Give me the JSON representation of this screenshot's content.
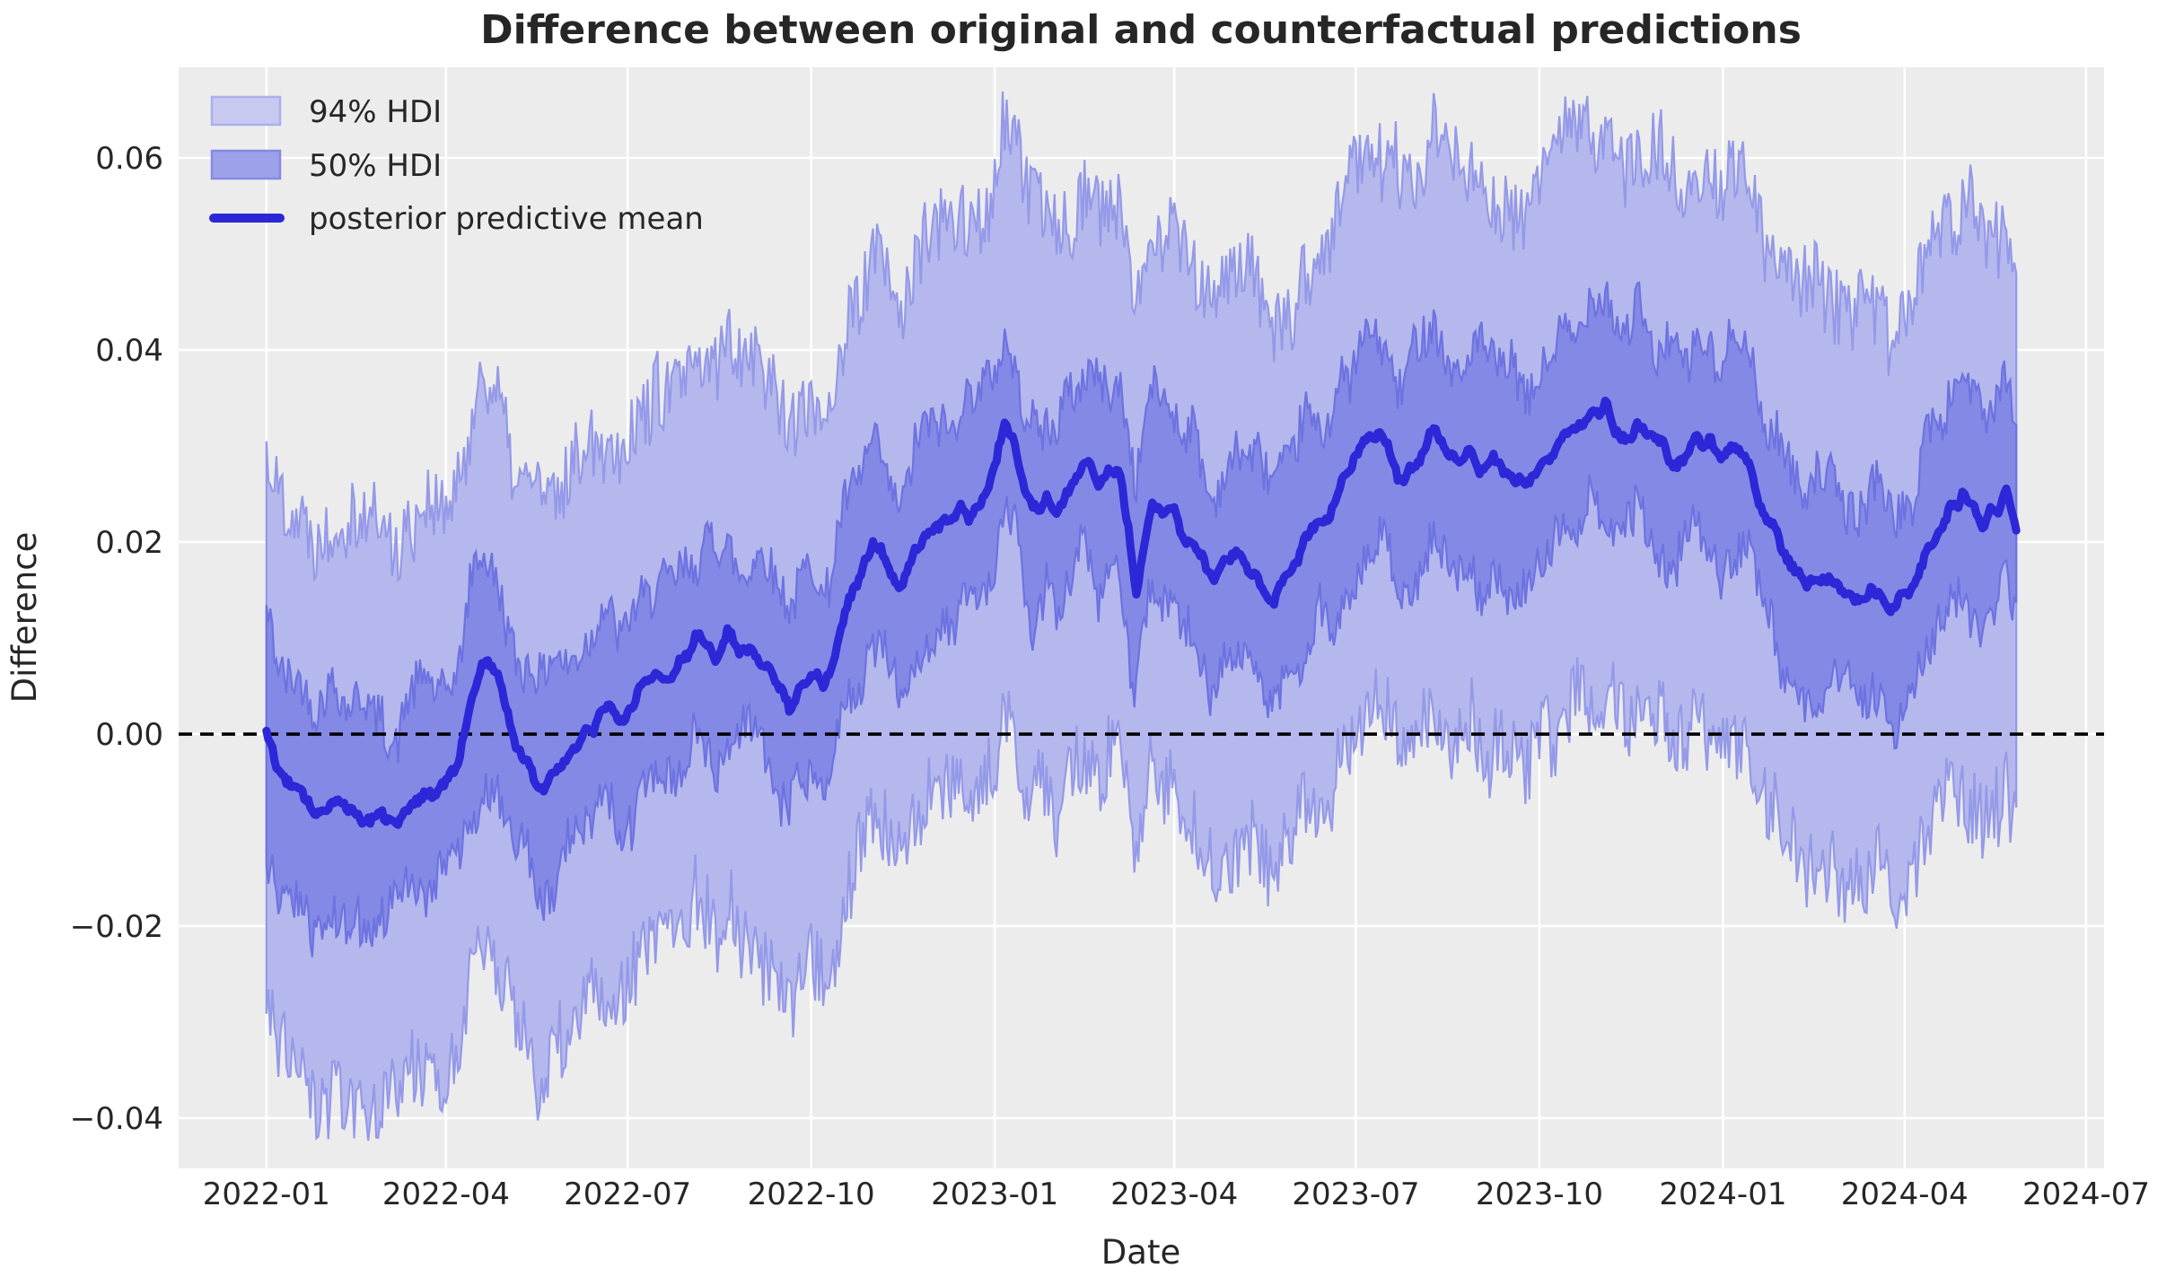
{
  "chart_data": {
    "type": "line",
    "title": "Difference between original and counterfactual predictions",
    "xlabel": "Date",
    "ylabel": "Difference",
    "legend_position": "upper left",
    "grid": true,
    "background": "plot area light gray with white gridlines",
    "x_start_date": "2022-01-01",
    "x_ticks": [
      {
        "label": "2022-01",
        "day": 0
      },
      {
        "label": "2022-04",
        "day": 90
      },
      {
        "label": "2022-07",
        "day": 181
      },
      {
        "label": "2022-10",
        "day": 273
      },
      {
        "label": "2023-01",
        "day": 365
      },
      {
        "label": "2023-04",
        "day": 455
      },
      {
        "label": "2023-07",
        "day": 546
      },
      {
        "label": "2023-10",
        "day": 638
      },
      {
        "label": "2024-01",
        "day": 730
      },
      {
        "label": "2024-04",
        "day": 821
      },
      {
        "label": "2024-07",
        "day": 912
      }
    ],
    "y_ticks": [
      {
        "label": "0.06",
        "value": 0.06
      },
      {
        "label": "0.04",
        "value": 0.04
      },
      {
        "label": "0.02",
        "value": 0.02
      },
      {
        "label": "0.00",
        "value": 0.0
      },
      {
        "label": "−0.02",
        "value": -0.02
      },
      {
        "label": "−0.04",
        "value": -0.04
      }
    ],
    "x_domain_days": [
      -44,
      921
    ],
    "y_domain": [
      -0.04523,
      0.06944
    ],
    "data_day_span": [
      0,
      877
    ],
    "zero_reference_line": 0.0,
    "legend_items": [
      {
        "label": "94% HDI",
        "kind": "band"
      },
      {
        "label": "50% HDI",
        "kind": "band"
      },
      {
        "label": "posterior predictive mean",
        "kind": "line"
      }
    ],
    "mean_anchors": [
      [
        0,
        0.0005
      ],
      [
        6,
        -0.004
      ],
      [
        14,
        -0.006
      ],
      [
        22,
        -0.0072
      ],
      [
        30,
        -0.008
      ],
      [
        36,
        -0.0066
      ],
      [
        44,
        -0.0085
      ],
      [
        52,
        -0.0093
      ],
      [
        58,
        -0.008
      ],
      [
        66,
        -0.0086
      ],
      [
        74,
        -0.007
      ],
      [
        82,
        -0.006
      ],
      [
        90,
        -0.0052
      ],
      [
        96,
        -0.003
      ],
      [
        102,
        0.0022
      ],
      [
        107,
        0.0062
      ],
      [
        111,
        0.008
      ],
      [
        116,
        0.006
      ],
      [
        121,
        0.0028
      ],
      [
        127,
        -0.0022
      ],
      [
        133,
        -0.0046
      ],
      [
        139,
        -0.0051
      ],
      [
        145,
        -0.0039
      ],
      [
        151,
        -0.0022
      ],
      [
        158,
        -0.0008
      ],
      [
        165,
        0.0012
      ],
      [
        172,
        0.0028
      ],
      [
        177,
        0.0014
      ],
      [
        184,
        0.004
      ],
      [
        190,
        0.0052
      ],
      [
        196,
        0.0062
      ],
      [
        202,
        0.0058
      ],
      [
        209,
        0.0078
      ],
      [
        215,
        0.01
      ],
      [
        220,
        0.0104
      ],
      [
        225,
        0.0078
      ],
      [
        231,
        0.01
      ],
      [
        237,
        0.0088
      ],
      [
        243,
        0.009
      ],
      [
        249,
        0.0076
      ],
      [
        254,
        0.006
      ],
      [
        258,
        0.0044
      ],
      [
        262,
        0.0024
      ],
      [
        268,
        0.0049
      ],
      [
        274,
        0.0061
      ],
      [
        279,
        0.0052
      ],
      [
        283,
        0.0078
      ],
      [
        288,
        0.0108
      ],
      [
        294,
        0.0152
      ],
      [
        299,
        0.0178
      ],
      [
        304,
        0.02
      ],
      [
        308,
        0.0185
      ],
      [
        313,
        0.016
      ],
      [
        317,
        0.0152
      ],
      [
        322,
        0.0172
      ],
      [
        327,
        0.0192
      ],
      [
        332,
        0.0212
      ],
      [
        340,
        0.0224
      ],
      [
        346,
        0.0234
      ],
      [
        352,
        0.0228
      ],
      [
        357,
        0.0238
      ],
      [
        362,
        0.0268
      ],
      [
        366,
        0.0288
      ],
      [
        370,
        0.032
      ],
      [
        374,
        0.031
      ],
      [
        379,
        0.0268
      ],
      [
        383,
        0.0242
      ],
      [
        387,
        0.0228
      ],
      [
        391,
        0.024
      ],
      [
        395,
        0.022
      ],
      [
        400,
        0.0244
      ],
      [
        406,
        0.0266
      ],
      [
        412,
        0.0286
      ],
      [
        417,
        0.0264
      ],
      [
        423,
        0.0272
      ],
      [
        428,
        0.0262
      ],
      [
        433,
        0.0196
      ],
      [
        436,
        0.0152
      ],
      [
        440,
        0.0205
      ],
      [
        444,
        0.0236
      ],
      [
        448,
        0.0222
      ],
      [
        453,
        0.0238
      ],
      [
        458,
        0.021
      ],
      [
        463,
        0.0196
      ],
      [
        469,
        0.0184
      ],
      [
        475,
        0.0166
      ],
      [
        481,
        0.018
      ],
      [
        486,
        0.0188
      ],
      [
        491,
        0.018
      ],
      [
        496,
        0.0162
      ],
      [
        501,
        0.0148
      ],
      [
        505,
        0.0143
      ],
      [
        510,
        0.016
      ],
      [
        516,
        0.0182
      ],
      [
        522,
        0.0202
      ],
      [
        528,
        0.0216
      ],
      [
        534,
        0.024
      ],
      [
        540,
        0.0262
      ],
      [
        546,
        0.0288
      ],
      [
        552,
        0.031
      ],
      [
        557,
        0.0322
      ],
      [
        562,
        0.03
      ],
      [
        567,
        0.0272
      ],
      [
        571,
        0.0264
      ],
      [
        576,
        0.0288
      ],
      [
        581,
        0.0302
      ],
      [
        586,
        0.0314
      ],
      [
        591,
        0.0294
      ],
      [
        597,
        0.0276
      ],
      [
        603,
        0.0286
      ],
      [
        609,
        0.0282
      ],
      [
        615,
        0.0288
      ],
      [
        621,
        0.0272
      ],
      [
        627,
        0.0264
      ],
      [
        633,
        0.0272
      ],
      [
        639,
        0.0282
      ],
      [
        645,
        0.0296
      ],
      [
        651,
        0.031
      ],
      [
        657,
        0.0324
      ],
      [
        663,
        0.033
      ],
      [
        670,
        0.034
      ],
      [
        675,
        0.0322
      ],
      [
        681,
        0.0306
      ],
      [
        687,
        0.032
      ],
      [
        693,
        0.0316
      ],
      [
        700,
        0.03
      ],
      [
        706,
        0.0286
      ],
      [
        712,
        0.0296
      ],
      [
        718,
        0.031
      ],
      [
        724,
        0.03
      ],
      [
        730,
        0.029
      ],
      [
        736,
        0.0296
      ],
      [
        742,
        0.028
      ],
      [
        748,
        0.0246
      ],
      [
        754,
        0.022
      ],
      [
        760,
        0.0196
      ],
      [
        766,
        0.0176
      ],
      [
        772,
        0.016
      ],
      [
        778,
        0.0156
      ],
      [
        784,
        0.016
      ],
      [
        790,
        0.0146
      ],
      [
        796,
        0.0136
      ],
      [
        802,
        0.0142
      ],
      [
        808,
        0.015
      ],
      [
        814,
        0.0136
      ],
      [
        820,
        0.0146
      ],
      [
        826,
        0.016
      ],
      [
        832,
        0.018
      ],
      [
        838,
        0.0206
      ],
      [
        844,
        0.023
      ],
      [
        850,
        0.0256
      ],
      [
        855,
        0.0232
      ],
      [
        861,
        0.022
      ],
      [
        867,
        0.0236
      ],
      [
        872,
        0.0246
      ],
      [
        877,
        0.0212
      ]
    ],
    "bands": {
      "hdi94": {
        "half_width": 0.0295,
        "wander_amp": 0.0028,
        "daily_jitter_amp": 0.0042
      },
      "hdi50": {
        "half_width": 0.0105,
        "wander_amp": 0.003,
        "daily_jitter_amp": 0.0024
      }
    },
    "mean_noise": {
      "wander_amp": 0.0009,
      "daily_jitter_amp": 0.0004
    },
    "colors": {
      "plot_bg": "#ececec",
      "grid": "#ffffff",
      "hdi94_fill": "#b5b8ec",
      "hdi94_edge": "#9499e8",
      "hdi50_fill": "#8489e5",
      "hdi50_edge": "#6d72e1",
      "mean_line": "#2c27d7",
      "zero_line": "#000000",
      "text": "#262626",
      "legend94_fill": "#c7c9f1",
      "legend94_edge": "#abafeb",
      "legend50_fill": "#9da1e9",
      "legend50_edge": "#8489e4"
    }
  }
}
